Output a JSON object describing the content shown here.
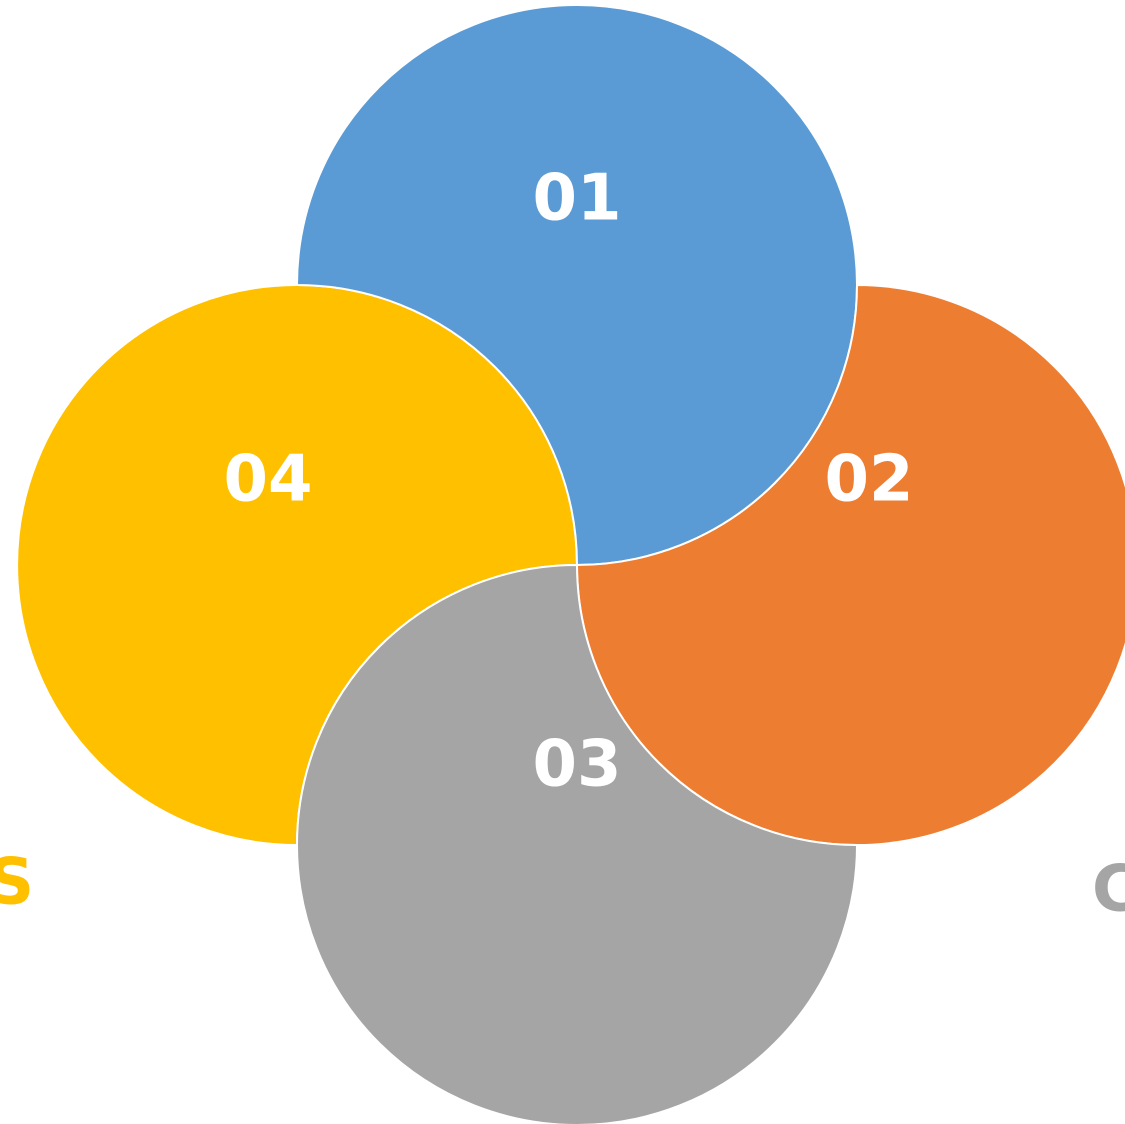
{
  "petals": [
    {
      "id": "01",
      "label": "01",
      "color": "#5b9bd5"
    },
    {
      "id": "02",
      "label": "02",
      "color": "#ed7d31"
    },
    {
      "id": "03",
      "label": "03",
      "color": "#a5a5a5"
    },
    {
      "id": "04",
      "label": "04",
      "color": "#ffc000"
    }
  ],
  "edge_fragments": [
    {
      "text": "S",
      "color": "#ffc000"
    },
    {
      "text": "C",
      "color": "#a5a5a5"
    }
  ]
}
